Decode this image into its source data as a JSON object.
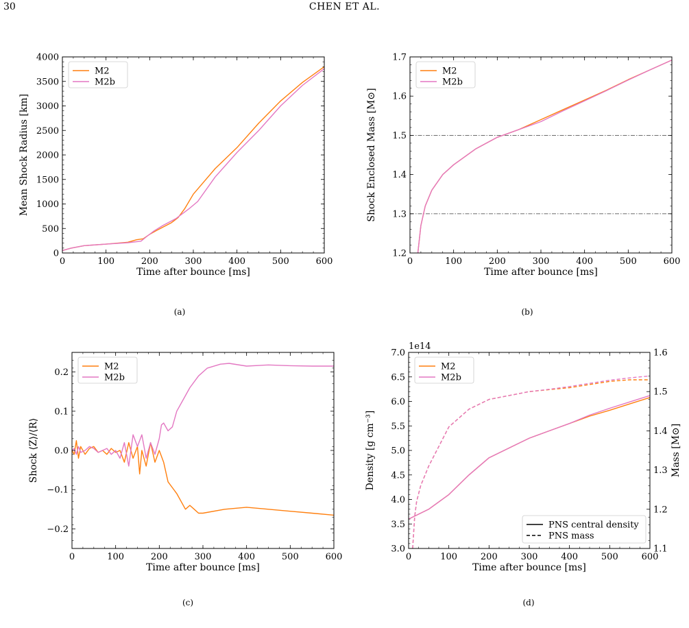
{
  "page_number": "30",
  "running_head": "CHEN ET AL.",
  "captions": [
    "(a)",
    "(b)",
    "(c)",
    "(d)"
  ],
  "colors": {
    "M2": "#ff7f0e",
    "M2b": "#e377c2",
    "reference_line": "#555555"
  },
  "chart_data": [
    {
      "id": "a",
      "type": "line",
      "xlabel": "Time after bounce [ms]",
      "ylabel": "Mean Shock Radius [km]",
      "xlim": [
        0,
        600
      ],
      "ylim": [
        0,
        4000
      ],
      "xticks": [
        0,
        100,
        200,
        300,
        400,
        500,
        600
      ],
      "yticks": [
        0,
        500,
        1000,
        1500,
        2000,
        2500,
        3000,
        3500,
        4000
      ],
      "legend_position": "top-left",
      "series": [
        {
          "name": "M2",
          "color": "#ff7f0e",
          "x": [
            0,
            20,
            50,
            100,
            150,
            170,
            185,
            200,
            220,
            250,
            265,
            280,
            300,
            350,
            400,
            450,
            500,
            550,
            600
          ],
          "y": [
            50,
            100,
            150,
            180,
            220,
            270,
            290,
            380,
            480,
            620,
            720,
            900,
            1200,
            1720,
            2150,
            2650,
            3100,
            3480,
            3800
          ]
        },
        {
          "name": "M2b",
          "color": "#e377c2",
          "x": [
            0,
            20,
            50,
            100,
            150,
            180,
            195,
            210,
            230,
            260,
            290,
            310,
            350,
            400,
            450,
            500,
            550,
            600
          ],
          "y": [
            50,
            100,
            150,
            180,
            210,
            240,
            350,
            450,
            560,
            700,
            900,
            1050,
            1550,
            2050,
            2500,
            3000,
            3420,
            3760
          ]
        }
      ]
    },
    {
      "id": "b",
      "type": "line",
      "xlabel": "Time after bounce [ms]",
      "ylabel": "Shock Enclosed Mass [M⊙]",
      "xlim": [
        0,
        600
      ],
      "ylim": [
        1.2,
        1.7
      ],
      "xticks": [
        0,
        100,
        200,
        300,
        400,
        500,
        600
      ],
      "yticks": [
        1.2,
        1.3,
        1.4,
        1.5,
        1.6,
        1.7
      ],
      "hlines": [
        1.5,
        1.3
      ],
      "legend_position": "top-left",
      "series": [
        {
          "name": "M2",
          "color": "#ff7f0e",
          "x": [
            18,
            25,
            35,
            50,
            75,
            100,
            150,
            200,
            250,
            300,
            350,
            400,
            450,
            500,
            550,
            600
          ],
          "y": [
            1.2,
            1.27,
            1.32,
            1.36,
            1.4,
            1.425,
            1.465,
            1.495,
            1.515,
            1.54,
            1.565,
            1.59,
            1.615,
            1.642,
            1.667,
            1.692
          ]
        },
        {
          "name": "M2b",
          "color": "#e377c2",
          "x": [
            18,
            25,
            35,
            50,
            75,
            100,
            150,
            200,
            250,
            300,
            350,
            400,
            450,
            500,
            550,
            600
          ],
          "y": [
            1.2,
            1.27,
            1.32,
            1.36,
            1.4,
            1.425,
            1.465,
            1.495,
            1.515,
            1.535,
            1.562,
            1.588,
            1.614,
            1.641,
            1.667,
            1.692
          ]
        }
      ]
    },
    {
      "id": "c",
      "type": "line",
      "xlabel": "Time after bounce [ms]",
      "ylabel": "Shock ⟨Z⟩/⟨R⟩",
      "xlim": [
        0,
        600
      ],
      "ylim": [
        -0.25,
        0.25
      ],
      "xticks": [
        0,
        100,
        200,
        300,
        400,
        500,
        600
      ],
      "yticks": [
        -0.2,
        -0.1,
        0.0,
        0.1,
        0.2
      ],
      "legend_position": "top-left",
      "series": [
        {
          "name": "M2",
          "color": "#ff7f0e",
          "x": [
            0,
            5,
            10,
            15,
            20,
            30,
            40,
            50,
            60,
            70,
            80,
            90,
            100,
            110,
            120,
            130,
            140,
            150,
            155,
            160,
            170,
            180,
            190,
            200,
            210,
            220,
            240,
            260,
            270,
            280,
            290,
            300,
            350,
            400,
            450,
            500,
            550,
            600
          ],
          "y": [
            0.0,
            -0.01,
            0.025,
            -0.02,
            0.01,
            -0.01,
            0.005,
            0.01,
            -0.005,
            0.0,
            -0.01,
            0.005,
            -0.005,
            0.0,
            -0.03,
            0.02,
            -0.02,
            0.01,
            -0.06,
            0.0,
            -0.04,
            0.02,
            -0.03,
            0.0,
            -0.03,
            -0.08,
            -0.11,
            -0.15,
            -0.14,
            -0.15,
            -0.16,
            -0.16,
            -0.15,
            -0.145,
            -0.15,
            -0.155,
            -0.16,
            -0.165
          ]
        },
        {
          "name": "M2b",
          "color": "#e377c2",
          "x": [
            0,
            5,
            10,
            15,
            20,
            30,
            40,
            50,
            60,
            70,
            80,
            90,
            100,
            110,
            120,
            130,
            140,
            150,
            160,
            170,
            180,
            190,
            200,
            205,
            210,
            220,
            230,
            240,
            250,
            270,
            290,
            310,
            340,
            360,
            400,
            450,
            500,
            550,
            600
          ],
          "y": [
            0.0,
            0.005,
            -0.01,
            0.01,
            -0.005,
            0.0,
            0.01,
            0.005,
            -0.005,
            0.0,
            0.005,
            -0.01,
            0.0,
            -0.02,
            0.02,
            -0.04,
            0.04,
            0.01,
            0.04,
            -0.02,
            0.02,
            -0.01,
            0.03,
            0.065,
            0.07,
            0.05,
            0.06,
            0.1,
            0.12,
            0.16,
            0.19,
            0.21,
            0.22,
            0.222,
            0.215,
            0.218,
            0.216,
            0.215,
            0.215
          ]
        }
      ]
    },
    {
      "id": "d",
      "type": "line",
      "xlabel": "Time after bounce [ms]",
      "ylabel": "Density [g cm⁻³]",
      "ylabel_right": "Mass [M⊙]",
      "offset_label": "1e14",
      "xlim": [
        0,
        600
      ],
      "ylim": [
        3.0,
        7.0
      ],
      "ylim_right": [
        1.1,
        1.6
      ],
      "xticks": [
        0,
        100,
        200,
        300,
        400,
        500,
        600
      ],
      "yticks": [
        3.0,
        3.5,
        4.0,
        4.5,
        5.0,
        5.5,
        6.0,
        6.5,
        7.0
      ],
      "yticks_right": [
        1.1,
        1.2,
        1.3,
        1.4,
        1.5,
        1.6
      ],
      "legend_position": "top-left",
      "style_legend": {
        "position": "bottom-right",
        "entries": [
          "PNS central density",
          "PNS mass"
        ]
      },
      "series": [
        {
          "name": "M2",
          "color": "#ff7f0e",
          "axis": "left",
          "quantity": "PNS central density",
          "x": [
            0,
            50,
            100,
            150,
            200,
            250,
            300,
            350,
            400,
            450,
            500,
            550,
            600
          ],
          "y": [
            3.6,
            3.8,
            4.1,
            4.5,
            4.85,
            5.05,
            5.25,
            5.4,
            5.55,
            5.7,
            5.82,
            5.95,
            6.08
          ]
        },
        {
          "name": "M2b",
          "color": "#e377c2",
          "axis": "left",
          "quantity": "PNS central density",
          "x": [
            0,
            50,
            100,
            150,
            200,
            250,
            300,
            350,
            400,
            450,
            500,
            550,
            600
          ],
          "y": [
            3.6,
            3.8,
            4.1,
            4.5,
            4.85,
            5.05,
            5.25,
            5.4,
            5.55,
            5.72,
            5.86,
            5.99,
            6.12
          ]
        },
        {
          "name": "M2",
          "color": "#ff7f0e",
          "axis": "right",
          "quantity": "PNS mass",
          "x": [
            10,
            15,
            20,
            30,
            50,
            75,
            100,
            150,
            200,
            250,
            300,
            350,
            400,
            450,
            500,
            550,
            600
          ],
          "y": [
            1.1,
            1.18,
            1.22,
            1.26,
            1.31,
            1.36,
            1.41,
            1.455,
            1.48,
            1.49,
            1.5,
            1.505,
            1.51,
            1.518,
            1.526,
            1.53,
            1.53
          ]
        },
        {
          "name": "M2b",
          "color": "#e377c2",
          "axis": "right",
          "quantity": "PNS mass",
          "x": [
            10,
            15,
            20,
            30,
            50,
            75,
            100,
            150,
            200,
            250,
            300,
            350,
            400,
            450,
            500,
            550,
            600
          ],
          "y": [
            1.1,
            1.18,
            1.22,
            1.26,
            1.31,
            1.36,
            1.41,
            1.455,
            1.48,
            1.49,
            1.5,
            1.506,
            1.513,
            1.521,
            1.529,
            1.535,
            1.54
          ]
        }
      ]
    }
  ]
}
